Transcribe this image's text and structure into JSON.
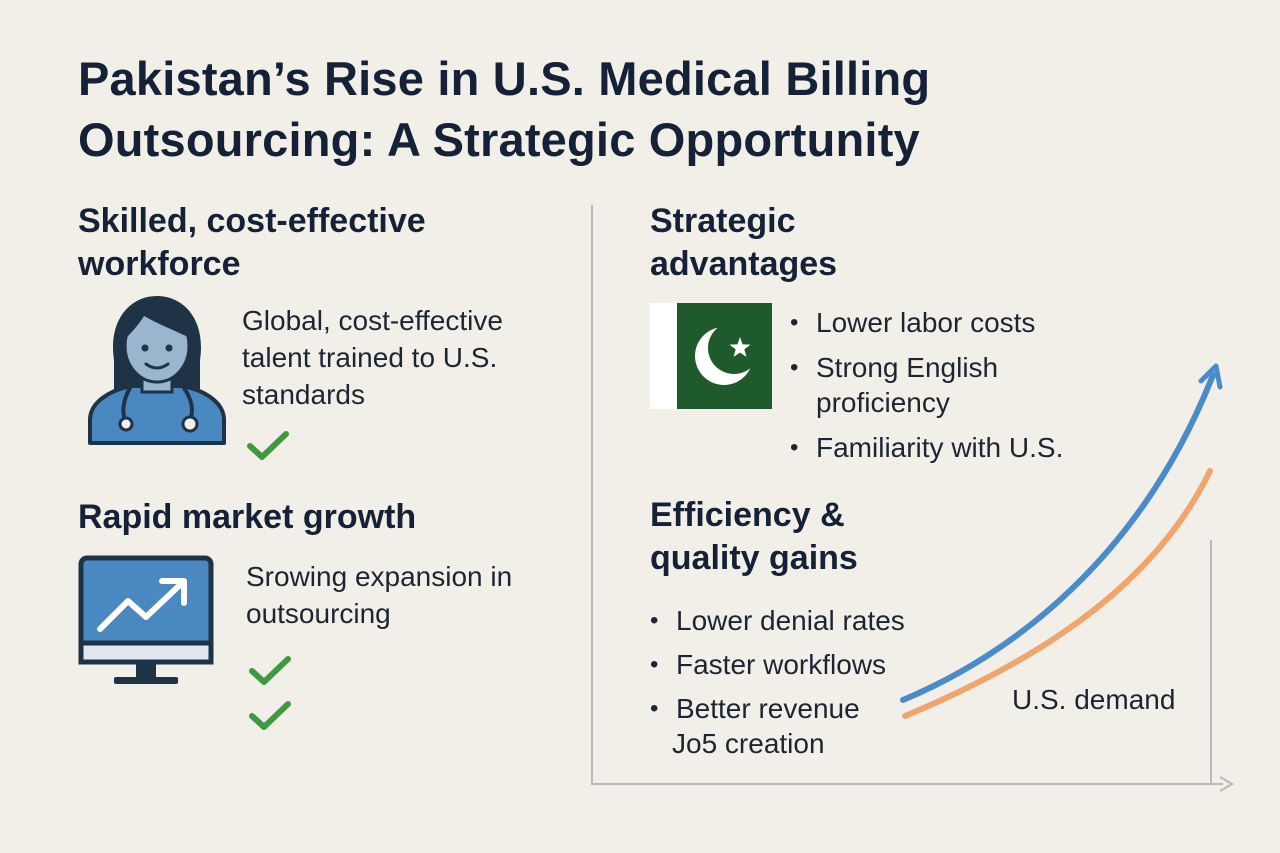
{
  "title": "Pakistan’s Rise in U.S. Medical Billing Outsourcing: A Strategic Opportunity",
  "workforce": {
    "heading": "Skilled, cost-effective workforce",
    "description": "Global, cost-effective talent trained to U.S. standards",
    "icon": "doctor-icon",
    "check_color": "#3f9a3f"
  },
  "growth": {
    "heading": "Rapid market growth",
    "description": "Srowing expansion in outsourcing",
    "icon": "rising-chart-monitor-icon"
  },
  "strategic": {
    "heading": "Strategic advantages",
    "icon": "pakistan-flag-icon",
    "flag_green": "#1f5a2c",
    "items": [
      "Lower labor costs",
      "Strong English proficiency",
      "Familiarity with U.S."
    ]
  },
  "efficiency": {
    "heading": "Efficiency & quality gains",
    "items": [
      "Lower denial rates",
      "Faster workflows",
      "Better revenue"
    ],
    "extra_line": "Jo5 creation"
  },
  "trend": {
    "label": "U.S. demand",
    "blue_color": "#4a8cc9",
    "orange_color": "#f1a46b"
  }
}
